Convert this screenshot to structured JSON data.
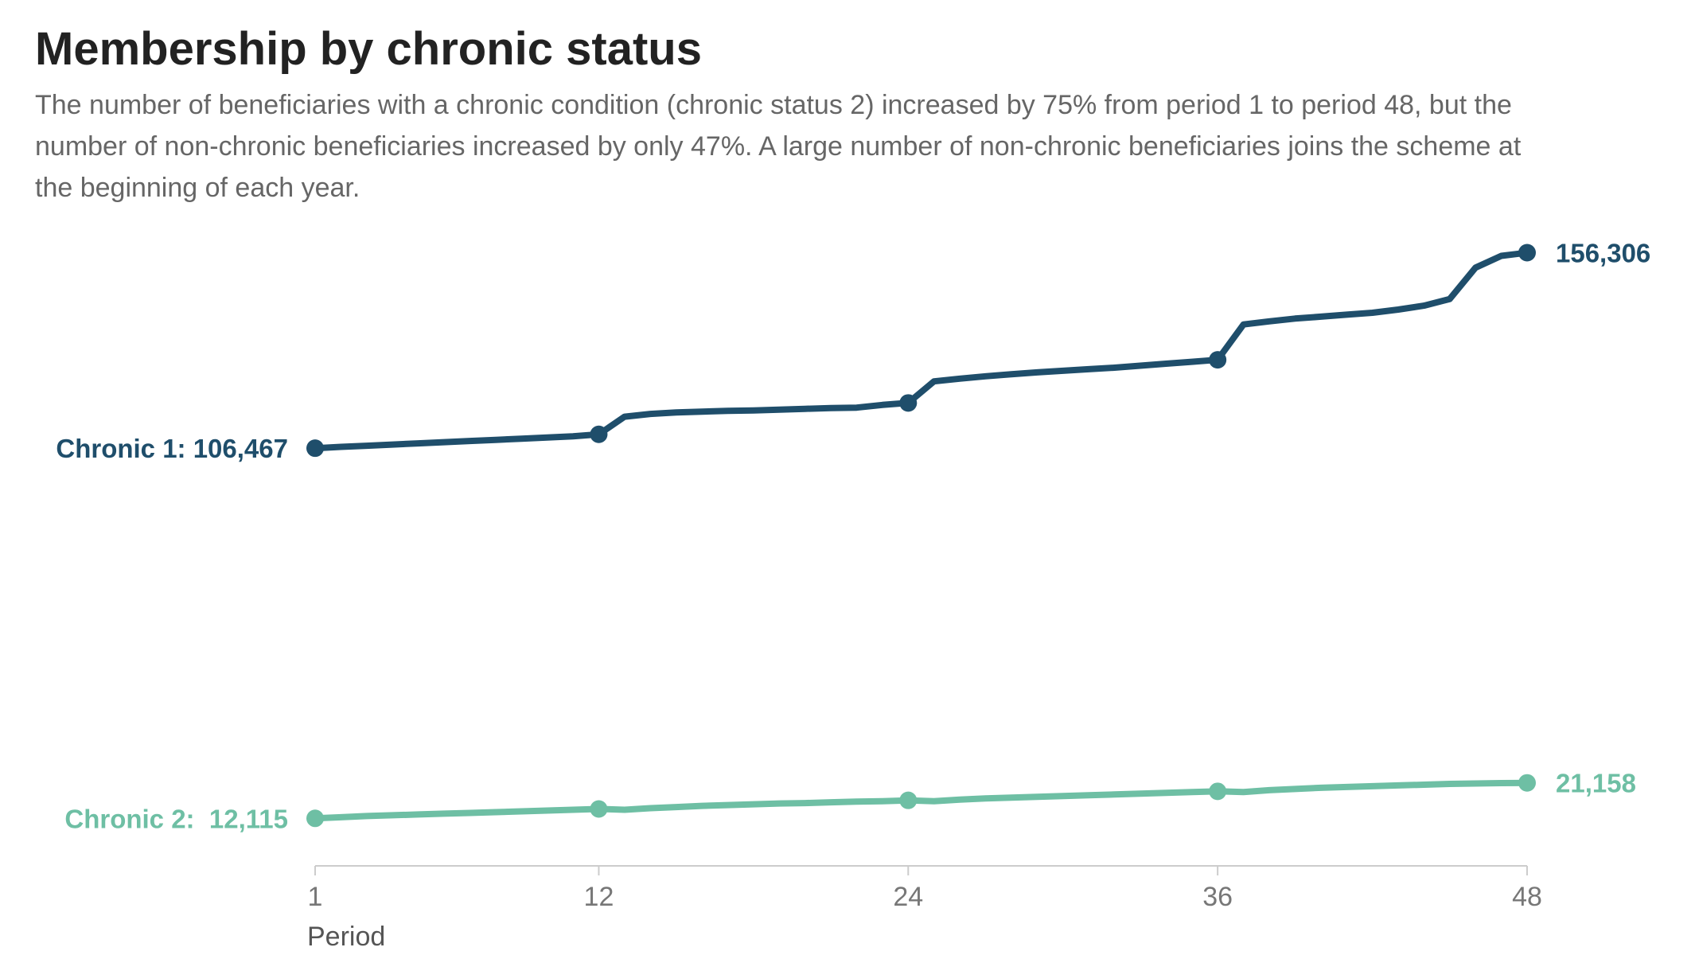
{
  "header": {
    "title": "Membership by chronic status",
    "subtitle": "The number of beneficiaries with a chronic condition (chronic status 2) increased by 75% from period 1 to period 48, but the number of non-chronic beneficiaries increased by only 47%. A large number of non-chronic beneficiaries joins the scheme at the beginning of each year."
  },
  "colors": {
    "chronic1": "#1f4e6b",
    "chronic2": "#6ebfa4",
    "axis": "#cccccc"
  },
  "chart_data": {
    "type": "line",
    "title": "Membership by chronic status",
    "xlabel": "Period",
    "ylabel": "",
    "xlim": [
      1,
      48
    ],
    "ylim": [
      0,
      170000
    ],
    "xticks": [
      1,
      12,
      24,
      36,
      48
    ],
    "grid": false,
    "legend": "inline",
    "x": [
      1,
      2,
      3,
      4,
      5,
      6,
      7,
      8,
      9,
      10,
      11,
      12,
      13,
      14,
      15,
      16,
      17,
      18,
      19,
      20,
      21,
      22,
      23,
      24,
      25,
      26,
      27,
      28,
      29,
      30,
      31,
      32,
      33,
      34,
      35,
      36,
      37,
      38,
      39,
      40,
      41,
      42,
      43,
      44,
      45,
      46,
      47,
      48
    ],
    "series": [
      {
        "name": "Chronic 1",
        "start_label": "Chronic 1: 106,467",
        "end_label": "156,306",
        "marker_x": [
          1,
          12,
          24,
          36,
          48
        ],
        "values": [
          106467,
          106800,
          107100,
          107400,
          107700,
          108000,
          108300,
          108600,
          108900,
          109200,
          109500,
          110000,
          114500,
          115200,
          115600,
          115800,
          116000,
          116100,
          116300,
          116500,
          116700,
          116800,
          117500,
          118000,
          123500,
          124200,
          124800,
          125300,
          125800,
          126200,
          126600,
          127000,
          127500,
          128000,
          128500,
          129000,
          138000,
          138800,
          139500,
          140000,
          140500,
          141000,
          141800,
          142800,
          144500,
          152500,
          155500,
          156306
        ]
      },
      {
        "name": "Chronic 2",
        "start_label": "Chronic 2:  12,115",
        "end_label": "21,158",
        "marker_x": [
          1,
          12,
          24,
          36,
          48
        ],
        "values": [
          12115,
          12400,
          12700,
          12900,
          13100,
          13300,
          13500,
          13700,
          13900,
          14100,
          14300,
          14500,
          14300,
          14700,
          15000,
          15300,
          15500,
          15700,
          15900,
          16000,
          16200,
          16400,
          16500,
          16700,
          16500,
          16900,
          17200,
          17400,
          17600,
          17800,
          18000,
          18200,
          18400,
          18600,
          18800,
          19000,
          18800,
          19300,
          19600,
          19900,
          20100,
          20300,
          20500,
          20700,
          20900,
          21000,
          21100,
          21158
        ]
      }
    ]
  }
}
